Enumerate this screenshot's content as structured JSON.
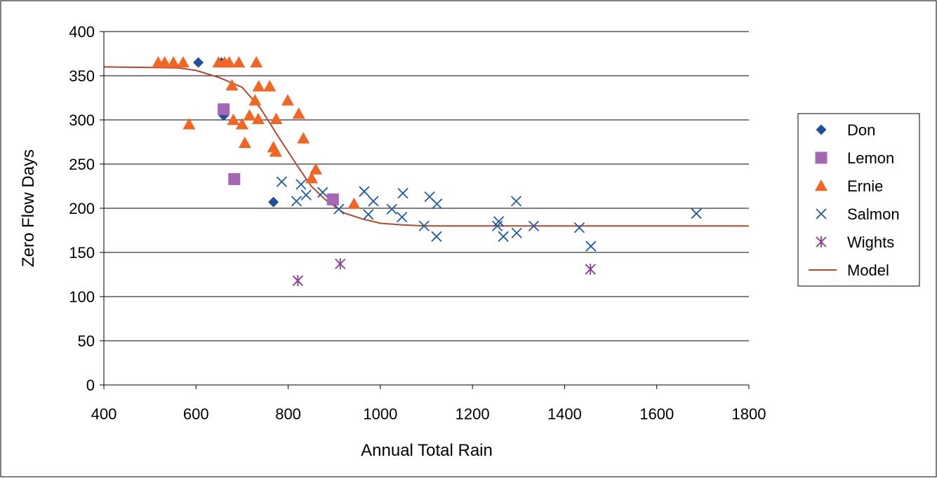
{
  "chart_data": {
    "type": "scatter",
    "title": "",
    "xlabel": "Annual Total Rain",
    "ylabel": "Zero Flow Days",
    "xlim": [
      400,
      1800
    ],
    "ylim": [
      0,
      400
    ],
    "x_ticks": [
      "400",
      "600",
      "800",
      "1000",
      "1200",
      "1400",
      "1600",
      "1800"
    ],
    "y_ticks": [
      "0",
      "50",
      "100",
      "150",
      "200",
      "250",
      "300",
      "350",
      "400"
    ],
    "grid": "horizontal",
    "legend_position": "right",
    "series": [
      {
        "name": "Don",
        "marker": "diamond",
        "color": "#1f4e9c",
        "points": [
          [
            605,
            365
          ],
          [
            655,
            365
          ],
          [
            660,
            305
          ],
          [
            768,
            207
          ]
        ]
      },
      {
        "name": "Lemon",
        "marker": "square",
        "color": "#a566b4",
        "points": [
          [
            660,
            312
          ],
          [
            683,
            233
          ],
          [
            897,
            210
          ]
        ]
      },
      {
        "name": "Ernie",
        "marker": "triangle",
        "color": "#f26522",
        "points": [
          [
            518,
            365
          ],
          [
            532,
            365
          ],
          [
            551,
            365
          ],
          [
            572,
            365
          ],
          [
            649,
            365
          ],
          [
            662,
            365
          ],
          [
            672,
            365
          ],
          [
            693,
            365
          ],
          [
            731,
            365
          ],
          [
            678,
            339
          ],
          [
            736,
            338
          ],
          [
            760,
            338
          ],
          [
            585,
            295
          ],
          [
            681,
            300
          ],
          [
            700,
            295
          ],
          [
            706,
            274
          ],
          [
            716,
            305
          ],
          [
            728,
            322
          ],
          [
            735,
            301
          ],
          [
            774,
            301
          ],
          [
            799,
            322
          ],
          [
            823,
            307
          ],
          [
            833,
            279
          ],
          [
            768,
            269
          ],
          [
            773,
            264
          ],
          [
            851,
            234
          ],
          [
            860,
            244
          ],
          [
            943,
            205
          ]
        ]
      },
      {
        "name": "Salmon",
        "marker": "x",
        "color": "#1f5aa8",
        "points": [
          [
            786,
            230
          ],
          [
            818,
            208
          ],
          [
            828,
            227
          ],
          [
            839,
            215
          ],
          [
            875,
            218
          ],
          [
            910,
            199
          ],
          [
            965,
            219
          ],
          [
            974,
            193
          ],
          [
            985,
            208
          ],
          [
            1025,
            199
          ],
          [
            1047,
            190
          ],
          [
            1049,
            217
          ],
          [
            1095,
            180
          ],
          [
            1107,
            213
          ],
          [
            1122,
            168
          ],
          [
            1123,
            205
          ],
          [
            1254,
            180
          ],
          [
            1257,
            185
          ],
          [
            1267,
            168
          ],
          [
            1295,
            208
          ],
          [
            1296,
            172
          ],
          [
            1333,
            180
          ],
          [
            1432,
            178
          ],
          [
            1457,
            157
          ],
          [
            1686,
            194
          ]
        ]
      },
      {
        "name": "Wights",
        "marker": "asterisk",
        "color": "#8b3a96",
        "points": [
          [
            821,
            118
          ],
          [
            913,
            137
          ],
          [
            1456,
            131
          ]
        ]
      },
      {
        "name": "Model",
        "marker": "line",
        "color": "#b7472a",
        "points": [
          [
            400,
            360
          ],
          [
            560,
            359
          ],
          [
            600,
            356
          ],
          [
            650,
            348
          ],
          [
            700,
            337
          ],
          [
            740,
            313
          ],
          [
            780,
            280
          ],
          [
            820,
            248
          ],
          [
            850,
            225
          ],
          [
            880,
            210
          ],
          [
            920,
            195
          ],
          [
            960,
            188
          ],
          [
            1000,
            183
          ],
          [
            1050,
            181
          ],
          [
            1100,
            180
          ],
          [
            1200,
            180
          ],
          [
            1400,
            180
          ],
          [
            1600,
            180
          ],
          [
            1800,
            180
          ]
        ]
      }
    ]
  }
}
